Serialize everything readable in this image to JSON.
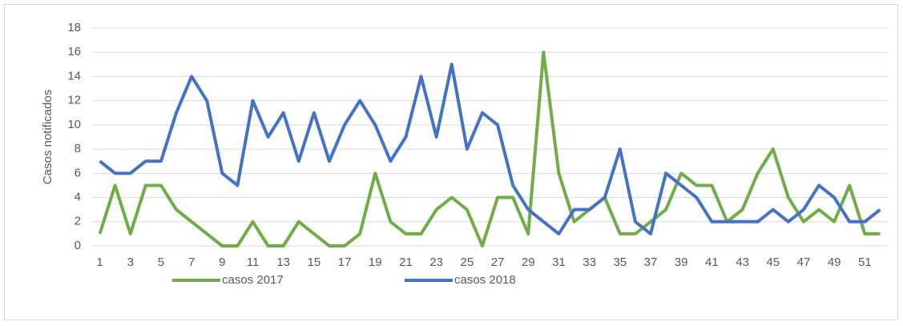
{
  "chart_data": {
    "type": "line",
    "y_label": "Casos notificados",
    "categories": [
      1,
      null,
      3,
      null,
      5,
      null,
      7,
      null,
      9,
      null,
      11,
      null,
      13,
      null,
      15,
      null,
      17,
      null,
      19,
      null,
      21,
      null,
      23,
      null,
      25,
      null,
      27,
      null,
      29,
      null,
      31,
      null,
      33,
      null,
      35,
      null,
      37,
      null,
      39,
      null,
      41,
      null,
      43,
      null,
      45,
      null,
      47,
      null,
      49,
      null,
      51,
      null
    ],
    "series": [
      {
        "name": "casos 2017",
        "color": "#70ad47",
        "values": [
          1,
          5,
          1,
          5,
          5,
          3,
          2,
          1,
          0,
          0,
          2,
          0,
          0,
          2,
          1,
          0,
          0,
          1,
          6,
          2,
          1,
          1,
          3,
          4,
          3,
          0,
          4,
          4,
          1,
          16,
          6,
          2,
          3,
          4,
          1,
          1,
          2,
          3,
          6,
          5,
          5,
          2,
          3,
          6,
          8,
          4,
          2,
          3,
          2,
          5,
          1,
          1
        ]
      },
      {
        "name": "casos 2018",
        "color": "#4472c4",
        "values": [
          7,
          6,
          6,
          7,
          7,
          11,
          14,
          12,
          6,
          5,
          12,
          9,
          11,
          7,
          11,
          7,
          10,
          12,
          10,
          7,
          9,
          14,
          9,
          15,
          8,
          11,
          10,
          5,
          3,
          2,
          1,
          3,
          3,
          4,
          8,
          2,
          1,
          6,
          5,
          4,
          2,
          2,
          2,
          2,
          3,
          2,
          3,
          5,
          4,
          2,
          2,
          3
        ]
      }
    ],
    "ylim": [
      0,
      18
    ],
    "yticks": [
      0,
      2,
      4,
      6,
      8,
      10,
      12,
      14,
      16,
      18
    ],
    "grid": true,
    "legend": "bottom"
  }
}
